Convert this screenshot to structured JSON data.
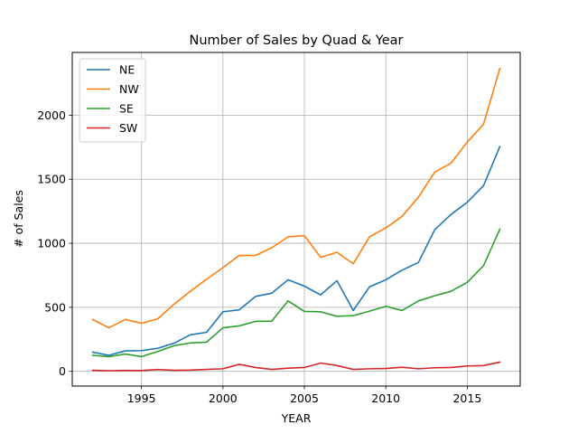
{
  "chart_data": {
    "type": "line",
    "title": "Number of Sales by Quad & Year",
    "xlabel": "YEAR",
    "ylabel": "# of Sales",
    "xlim": [
      1990.75,
      2018.25
    ],
    "ylim": [
      -115,
      2490
    ],
    "xticks": [
      1995,
      2000,
      2005,
      2010,
      2015
    ],
    "yticks": [
      0,
      500,
      1000,
      1500,
      2000
    ],
    "grid": true,
    "legend_position": "top-left",
    "x": [
      1992,
      1993,
      1994,
      1995,
      1996,
      1997,
      1998,
      1999,
      2000,
      2001,
      2002,
      2003,
      2004,
      2005,
      2006,
      2007,
      2008,
      2009,
      2010,
      2011,
      2012,
      2013,
      2014,
      2015,
      2016,
      2017
    ],
    "series": [
      {
        "name": "NE",
        "color": "#1f77b4",
        "values": [
          150,
          125,
          160,
          162,
          180,
          220,
          285,
          305,
          465,
          480,
          585,
          610,
          715,
          665,
          597,
          708,
          475,
          660,
          715,
          790,
          850,
          1105,
          1225,
          1320,
          1450,
          1755
        ]
      },
      {
        "name": "NW",
        "color": "#ff7f0e",
        "values": [
          405,
          340,
          405,
          375,
          410,
          525,
          625,
          720,
          810,
          905,
          905,
          965,
          1050,
          1060,
          890,
          930,
          840,
          1050,
          1120,
          1210,
          1360,
          1555,
          1625,
          1790,
          1930,
          2365
        ]
      },
      {
        "name": "SE",
        "color": "#2ca02c",
        "values": [
          125,
          115,
          135,
          115,
          155,
          200,
          222,
          228,
          340,
          355,
          390,
          392,
          550,
          468,
          465,
          430,
          435,
          470,
          508,
          475,
          550,
          590,
          625,
          695,
          825,
          1110
        ]
      },
      {
        "name": "SW",
        "color": "#d62728",
        "values": [
          8,
          5,
          7,
          6,
          14,
          8,
          10,
          15,
          20,
          55,
          30,
          15,
          25,
          30,
          65,
          45,
          15,
          20,
          22,
          32,
          20,
          28,
          30,
          42,
          45,
          72
        ]
      }
    ]
  }
}
